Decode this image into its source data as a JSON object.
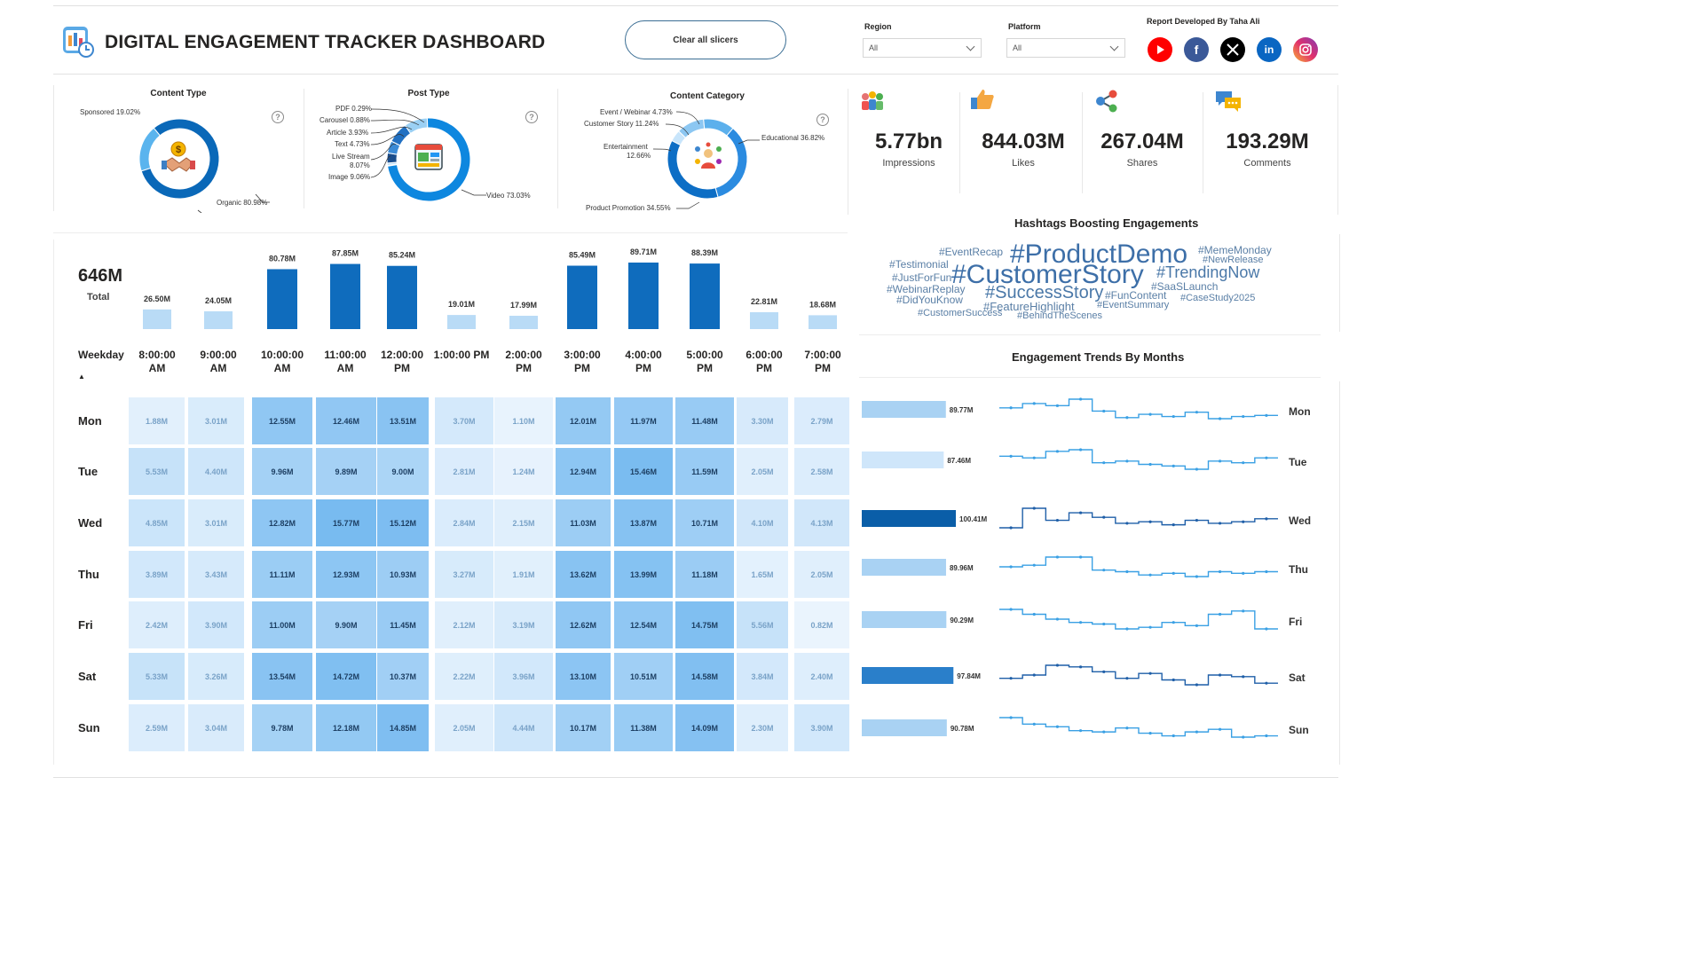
{
  "header": {
    "title": "DIGITAL ENGAGEMENT TRACKER DASHBOARD",
    "clear_button": "Clear all slicers",
    "region_label": "Region",
    "region_value": "All",
    "platform_label": "Platform",
    "platform_value": "All",
    "developer": "Report Developed By Taha Ali",
    "socials": [
      {
        "icon": "youtube-icon",
        "color": "#ff0000"
      },
      {
        "icon": "facebook-icon",
        "color": "#3b5998"
      },
      {
        "icon": "x-icon",
        "color": "#000000"
      },
      {
        "icon": "linkedin-icon",
        "color": "#0a66c2"
      },
      {
        "icon": "instagram-icon",
        "color": "#e1306c"
      }
    ]
  },
  "donuts": [
    {
      "title": "Content Type",
      "icon": "handshake-icon",
      "slices": [
        {
          "label": "Sponsored 19.02%",
          "value": 19.02,
          "color": "#5ab4ee"
        },
        {
          "label": "Organic 80.98%",
          "value": 80.98,
          "color": "#0a68b8"
        }
      ]
    },
    {
      "title": "Post Type",
      "icon": "media-icon",
      "slices": [
        {
          "label": "PDF 0.29%",
          "value": 0.29,
          "color": "#dbeeff"
        },
        {
          "label": "Carousel 0.88%",
          "value": 0.88,
          "color": "#b7dcf8"
        },
        {
          "label": "Article 3.93%",
          "value": 3.93,
          "color": "#1a4d8c"
        },
        {
          "label": "Text 4.73%",
          "value": 4.73,
          "color": "#3a8ad6"
        },
        {
          "label": "Live Stream",
          "label2": "8.07%",
          "value": 8.07,
          "color": "#2170c2"
        },
        {
          "label": "Image 9.06%",
          "value": 9.06,
          "color": "#9bd0f4"
        },
        {
          "label": "Video 73.03%",
          "value": 73.03,
          "color": "#0e87df"
        }
      ]
    },
    {
      "title": "Content Category",
      "icon": "people-icon",
      "slices": [
        {
          "label": "Event / Webinar 4.73%",
          "value": 4.73,
          "color": "#c8e5fb"
        },
        {
          "label": "Customer Story 11.24%",
          "value": 11.24,
          "color": "#8cc7f2"
        },
        {
          "label": "Entertainment",
          "label2": "12.66%",
          "value": 12.66,
          "color": "#5cb0ec"
        },
        {
          "label": "Product Promotion 34.55%",
          "value": 34.55,
          "color": "#2b8be0"
        },
        {
          "label": "Educational 36.82%",
          "value": 36.82,
          "color": "#0d6ec5"
        }
      ]
    }
  ],
  "kpis": [
    {
      "value": "5.77bn",
      "label": "Impressions",
      "icon": "audience-icon"
    },
    {
      "value": "844.03M",
      "label": "Likes",
      "icon": "thumbs-up-icon"
    },
    {
      "value": "267.04M",
      "label": "Shares",
      "icon": "share-icon"
    },
    {
      "value": "193.29M",
      "label": "Comments",
      "icon": "comments-icon"
    }
  ],
  "chart_data": [
    {
      "type": "bar",
      "total_value": "646M",
      "total_label": "Total",
      "categories": [
        "8:00:00 AM",
        "9:00:00 AM",
        "10:00:00 AM",
        "11:00:00 AM",
        "12:00:00 PM",
        "1:00:00 PM",
        "2:00:00 PM",
        "3:00:00 PM",
        "4:00:00 PM",
        "5:00:00 PM",
        "6:00:00 PM",
        "7:00:00 PM"
      ],
      "values": [
        26.5,
        24.05,
        80.78,
        87.85,
        85.24,
        19.01,
        17.99,
        85.49,
        89.71,
        88.39,
        22.81,
        18.68
      ],
      "labels": [
        "26.50M",
        "24.05M",
        "80.78M",
        "87.85M",
        "85.24M",
        "19.01M",
        "17.99M",
        "85.49M",
        "89.71M",
        "88.39M",
        "22.81M",
        "18.68M"
      ]
    },
    {
      "type": "heatmap",
      "row_header": "Weekday",
      "rows": [
        "Mon",
        "Tue",
        "Wed",
        "Thu",
        "Fri",
        "Sat",
        "Sun"
      ],
      "columns": [
        "8:00:00 AM",
        "9:00:00 AM",
        "10:00:00 AM",
        "11:00:00 AM",
        "12:00:00 PM",
        "1:00:00 PM",
        "2:00:00 PM",
        "3:00:00 PM",
        "4:00:00 PM",
        "5:00:00 PM",
        "6:00:00 PM",
        "7:00:00 PM"
      ],
      "values": [
        [
          1.88,
          3.01,
          12.55,
          12.46,
          13.51,
          3.7,
          1.1,
          12.01,
          11.97,
          11.48,
          3.3,
          2.79
        ],
        [
          5.53,
          4.4,
          9.96,
          9.89,
          9.0,
          2.81,
          1.24,
          12.94,
          15.46,
          11.59,
          2.05,
          2.58
        ],
        [
          4.85,
          3.01,
          12.82,
          15.77,
          15.12,
          2.84,
          2.15,
          11.03,
          13.87,
          10.71,
          4.1,
          4.13
        ],
        [
          3.89,
          3.43,
          11.11,
          12.93,
          10.93,
          3.27,
          1.91,
          13.62,
          13.99,
          11.18,
          1.65,
          2.05
        ],
        [
          2.42,
          3.9,
          11.0,
          9.9,
          11.45,
          2.12,
          3.19,
          12.62,
          12.54,
          14.75,
          5.56,
          0.82
        ],
        [
          5.33,
          3.26,
          13.54,
          14.72,
          10.37,
          2.22,
          3.96,
          13.1,
          10.51,
          14.58,
          3.84,
          2.4
        ],
        [
          2.59,
          3.04,
          9.78,
          12.18,
          14.85,
          2.05,
          4.44,
          10.17,
          11.38,
          14.09,
          2.3,
          3.9
        ]
      ],
      "labels": [
        [
          "1.88M",
          "3.01M",
          "12.55M",
          "12.46M",
          "13.51M",
          "3.70M",
          "1.10M",
          "12.01M",
          "11.97M",
          "11.48M",
          "3.30M",
          "2.79M"
        ],
        [
          "5.53M",
          "4.40M",
          "9.96M",
          "9.89M",
          "9.00M",
          "2.81M",
          "1.24M",
          "12.94M",
          "15.46M",
          "11.59M",
          "2.05M",
          "2.58M"
        ],
        [
          "4.85M",
          "3.01M",
          "12.82M",
          "15.77M",
          "15.12M",
          "2.84M",
          "2.15M",
          "11.03M",
          "13.87M",
          "10.71M",
          "4.10M",
          "4.13M"
        ],
        [
          "3.89M",
          "3.43M",
          "11.11M",
          "12.93M",
          "10.93M",
          "3.27M",
          "1.91M",
          "13.62M",
          "13.99M",
          "11.18M",
          "1.65M",
          "2.05M"
        ],
        [
          "2.42M",
          "3.90M",
          "11.00M",
          "9.90M",
          "11.45M",
          "2.12M",
          "3.19M",
          "12.62M",
          "12.54M",
          "14.75M",
          "5.56M",
          "0.82M"
        ],
        [
          "5.33M",
          "3.26M",
          "13.54M",
          "14.72M",
          "10.37M",
          "2.22M",
          "3.96M",
          "13.10M",
          "10.51M",
          "14.58M",
          "3.84M",
          "2.40M"
        ],
        [
          "2.59M",
          "3.04M",
          "9.78M",
          "12.18M",
          "14.85M",
          "2.05M",
          "4.44M",
          "10.17M",
          "11.38M",
          "14.09M",
          "2.30M",
          "3.90M"
        ]
      ]
    },
    {
      "type": "bar",
      "title": "Engagement Trends By Months",
      "categories": [
        "Mon",
        "Tue",
        "Wed",
        "Thu",
        "Fri",
        "Sat",
        "Sun"
      ],
      "values": [
        89.77,
        87.46,
        100.41,
        89.96,
        90.29,
        97.84,
        90.78
      ],
      "labels": [
        "89.77M",
        "87.46M",
        "100.41M",
        "89.96M",
        "90.29M",
        "97.84M",
        "90.78M"
      ],
      "colors": [
        "#a9d2f3",
        "#cfe6fa",
        "#0a5ea8",
        "#a9d2f3",
        "#a9d2f3",
        "#2a7fca",
        "#a9d2f3"
      ],
      "trend_series": [
        [
          7.4,
          7.8,
          7.6,
          8.2,
          7.1,
          6.5,
          6.8,
          6.6,
          7.0,
          6.4,
          6.6,
          6.7
        ],
        [
          7.2,
          7.1,
          7.5,
          7.6,
          6.8,
          6.9,
          6.7,
          6.6,
          6.4,
          6.9,
          6.8,
          7.1
        ],
        [
          7.6,
          8.9,
          8.1,
          8.6,
          8.3,
          7.9,
          8.0,
          7.8,
          8.1,
          7.9,
          8.0,
          8.2
        ],
        [
          7.3,
          7.4,
          7.9,
          7.9,
          7.1,
          7.0,
          6.8,
          6.9,
          6.7,
          7.0,
          6.9,
          7.0
        ],
        [
          8.2,
          7.9,
          7.6,
          7.4,
          7.3,
          7.0,
          7.1,
          7.4,
          7.2,
          7.9,
          8.1,
          7.0
        ],
        [
          7.6,
          7.8,
          8.4,
          8.3,
          8.0,
          7.6,
          7.9,
          7.5,
          7.2,
          7.8,
          7.7,
          7.3
        ],
        [
          8.6,
          8.1,
          7.9,
          7.6,
          7.5,
          7.8,
          7.4,
          7.2,
          7.5,
          7.7,
          7.1,
          7.2
        ]
      ]
    }
  ],
  "hashtags": {
    "title": "Hashtags Boosting Engagements",
    "tags": [
      {
        "text": "#EventRecap",
        "size": 12,
        "color": "#5a7fa6"
      },
      {
        "text": "#ProductDemo",
        "size": 30,
        "color": "#3d6fa8"
      },
      {
        "text": "#MemeMonday",
        "size": 12,
        "color": "#5a7fa6"
      },
      {
        "text": "#Testimonial",
        "size": 12,
        "color": "#5a7fa6"
      },
      {
        "text": "#NewRelease",
        "size": 11,
        "color": "#5a7fa6"
      },
      {
        "text": "#CustomerStory",
        "size": 30,
        "color": "#3d6fa8"
      },
      {
        "text": "#TrendingNow",
        "size": 18,
        "color": "#4a78a8"
      },
      {
        "text": "#JustForFun",
        "size": 12,
        "color": "#5a7fa6"
      },
      {
        "text": "#SaaSLaunch",
        "size": 12,
        "color": "#5a7fa6"
      },
      {
        "text": "#WebinarReplay",
        "size": 12,
        "color": "#5a7fa6"
      },
      {
        "text": "#SuccessStory",
        "size": 20,
        "color": "#4a78a8"
      },
      {
        "text": "#FunContent",
        "size": 12,
        "color": "#5a7fa6"
      },
      {
        "text": "#CaseStudy2025",
        "size": 11,
        "color": "#5a7fa6"
      },
      {
        "text": "#DidYouKnow",
        "size": 12,
        "color": "#5a7fa6"
      },
      {
        "text": "#FeatureHighlight",
        "size": 13,
        "color": "#5a7fa6"
      },
      {
        "text": "#EventSummary",
        "size": 11,
        "color": "#5a7fa6"
      },
      {
        "text": "#CustomerSuccess",
        "size": 11,
        "color": "#5a7fa6"
      },
      {
        "text": "#BehindTheScenes",
        "size": 11,
        "color": "#5a7fa6"
      }
    ]
  }
}
